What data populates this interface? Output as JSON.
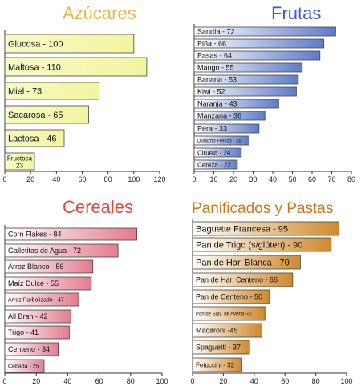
{
  "chart_data": [
    {
      "type": "bar",
      "orientation": "horizontal",
      "title": "Azúcares",
      "title_color": "#e9b44c",
      "bar_gradient": [
        "#f7f9c8",
        "#f3f5a0"
      ],
      "categories": [
        "Glucosa - 100",
        "Maltosa - 110",
        "Miel - 73",
        "Sacarosa - 65",
        "Lactosa - 46",
        "Fructosa 23"
      ],
      "values": [
        100,
        110,
        73,
        65,
        46,
        23
      ],
      "xlim": [
        0,
        120
      ],
      "xticks": [
        "0",
        "20",
        "40",
        "60",
        "80",
        "100",
        "120"
      ],
      "grid": false
    },
    {
      "type": "bar",
      "orientation": "horizontal",
      "title": "Frutas",
      "title_color": "#3b5bd6",
      "bar_gradient": [
        "#ffffff",
        "#5d7bc9"
      ],
      "categories": [
        "Sandía - 72",
        "Piña - 66",
        "Pasas - 64",
        "Mango - 55",
        "Banana - 53",
        "Kiwi - 52",
        "Naranja - 43",
        "Manzana - 36",
        "Pera - 33",
        "Durazno Fresco - 28",
        "Ciruela - 24",
        "Cereza - 22"
      ],
      "values": [
        72,
        66,
        64,
        55,
        53,
        52,
        43,
        36,
        33,
        28,
        24,
        22
      ],
      "xlim": [
        0,
        80
      ],
      "xticks": [
        "0",
        "10",
        "20",
        "30",
        "40",
        "50",
        "60",
        "70",
        "80"
      ],
      "grid": false
    },
    {
      "type": "bar",
      "orientation": "horizontal",
      "title": "Cereales",
      "title_color": "#e0493f",
      "bar_gradient": [
        "#ffffff",
        "#e37c8e"
      ],
      "categories": [
        "Corn Flakes - 84",
        "Galletitas de Agua - 72",
        "Arroz Blanco - 56",
        "Maíz Dulce - 55",
        "Arroz Parbolizado - 47",
        "All Bran - 42",
        "Trigo - 41",
        "Centeno - 34",
        "Cebada - 25"
      ],
      "values": [
        84,
        72,
        56,
        55,
        47,
        42,
        41,
        34,
        25
      ],
      "xlim": [
        0,
        100
      ],
      "xticks": [
        "0",
        "20",
        "40",
        "60",
        "80",
        "100"
      ],
      "grid": false
    },
    {
      "type": "bar",
      "orientation": "horizontal",
      "title": "Panificados y Pastas",
      "title_color": "#c87a1e",
      "bar_gradient": [
        "#ffffff",
        "#cf8a2e"
      ],
      "categories": [
        "Baguette Francesa - 95",
        "Pan de Trigo (s/glúten) - 90",
        "Pan de Har. Blanca - 70",
        "Pan de Har. Centeno - 65",
        "Pan de Centeno - 50",
        "Pan de Salv. de Avena -47",
        "Macaroni -45",
        "Spaguetti - 37",
        "Fetuccini - 32"
      ],
      "values": [
        95,
        90,
        70,
        65,
        50,
        47,
        45,
        37,
        32
      ],
      "xlim": [
        0,
        100
      ],
      "xticks": [
        "0",
        "20",
        "40",
        "60",
        "80",
        "100"
      ],
      "grid": false
    }
  ]
}
